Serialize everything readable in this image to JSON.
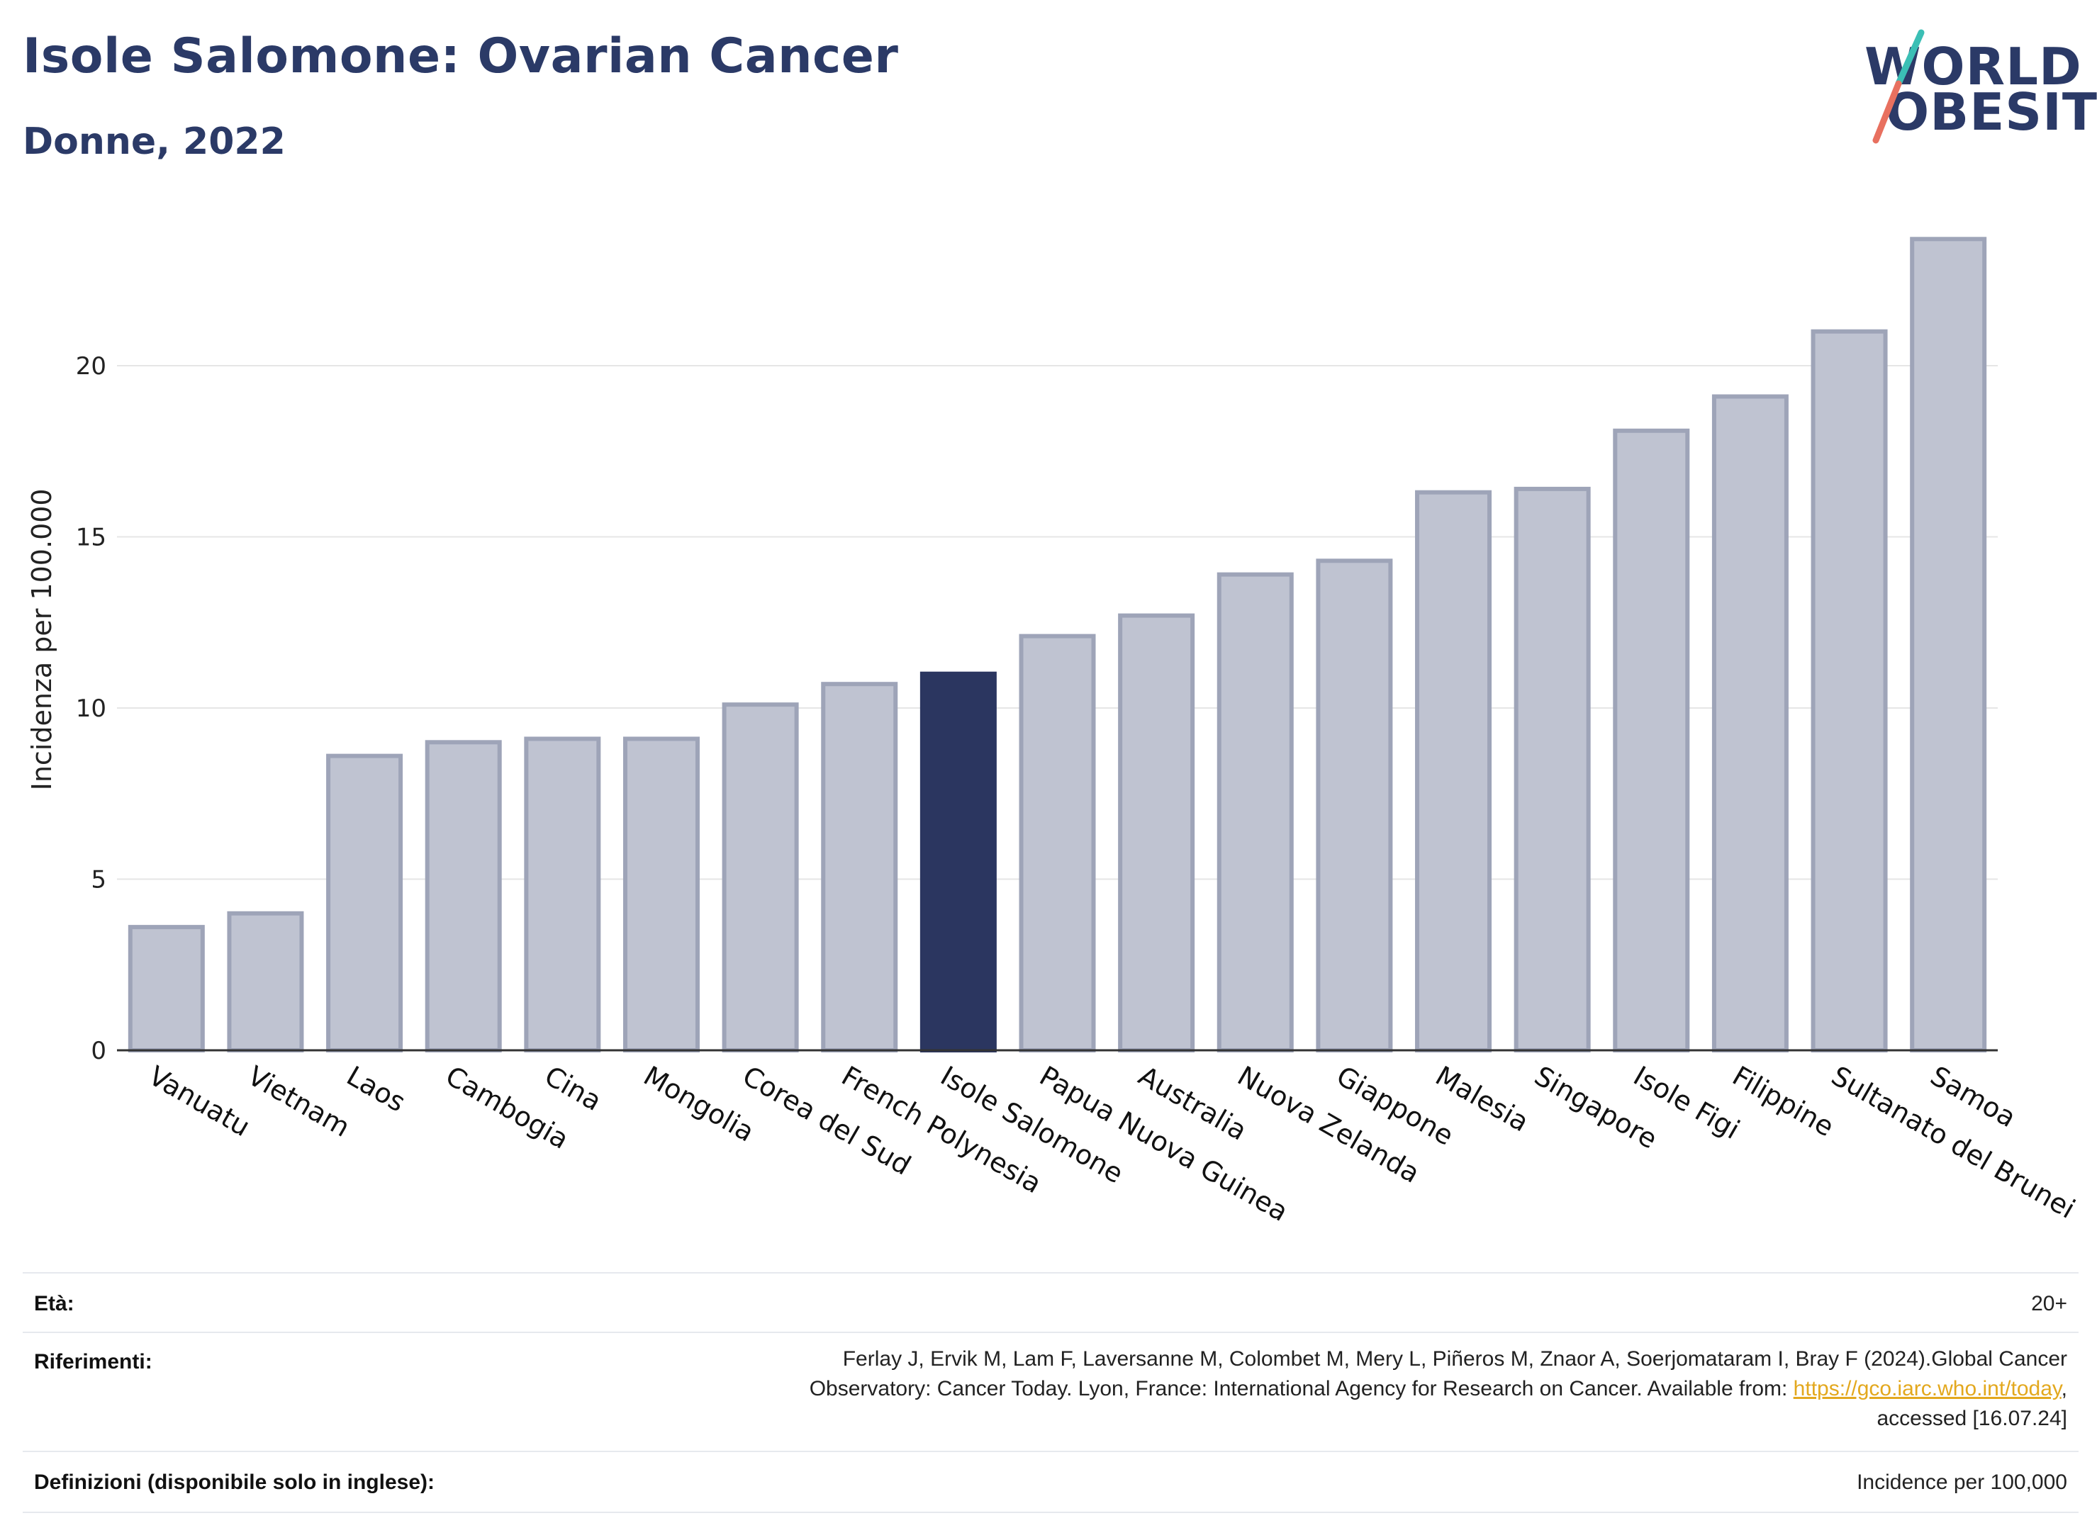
{
  "header": {
    "title": "Isole Salomone: Ovarian Cancer",
    "subtitle": "Donne, 2022"
  },
  "logo": {
    "line1": "WORLD",
    "line2": "OBESITY",
    "slash_colors": [
      "#3bbfb5",
      "#e8705f"
    ]
  },
  "colors": {
    "bar": "#bfc3d1",
    "bar_stroke": "#9ea4b8",
    "highlight": "#2b3660",
    "grid": "#e6e6e6",
    "axis": "#333333",
    "text": "#2b3a67"
  },
  "chart_data": {
    "type": "bar",
    "categories": [
      "Vanuatu",
      "Vietnam",
      "Laos",
      "Cambogia",
      "Cina",
      "Mongolia",
      "Corea del Sud",
      "French Polynesia",
      "Isole Salomone",
      "Papua Nuova Guinea",
      "Australia",
      "Nuova Zelanda",
      "Giappone",
      "Malesia",
      "Singapore",
      "Isole Figi",
      "Filippine",
      "Sultanato del Brunei",
      "Samoa"
    ],
    "values": [
      3.6,
      4.0,
      8.6,
      9.0,
      9.1,
      9.1,
      10.1,
      10.7,
      11.0,
      12.1,
      12.7,
      13.9,
      14.3,
      16.3,
      16.4,
      18.1,
      19.1,
      21.0,
      23.7
    ],
    "highlight": "Isole Salomone",
    "title": "Isole Salomone: Ovarian Cancer",
    "xlabel": "",
    "ylabel": "Incidenza per 100.000",
    "ylim": [
      0,
      24.5
    ],
    "yticks": [
      0,
      5,
      10,
      15,
      20
    ],
    "grid": true
  },
  "footer": {
    "age_label": "Età:",
    "age_value": "20+",
    "refs_label": "Riferimenti:",
    "refs_line1": "Ferlay J, Ervik M, Lam F, Laversanne M, Colombet M, Mery L, Piñeros M, Znaor A, Soerjomataram I, Bray F (2024).Global Cancer",
    "refs_line2_pre": "Observatory: Cancer Today. Lyon, France: International Agency for Research on Cancer. Available from: ",
    "refs_link": "https://gco.iarc.who.int/today",
    "refs_line2_post": ",",
    "refs_line3": "accessed [16.07.24]",
    "defs_label": "Definizioni (disponibile solo in inglese):",
    "defs_value": "Incidence per 100,000"
  }
}
